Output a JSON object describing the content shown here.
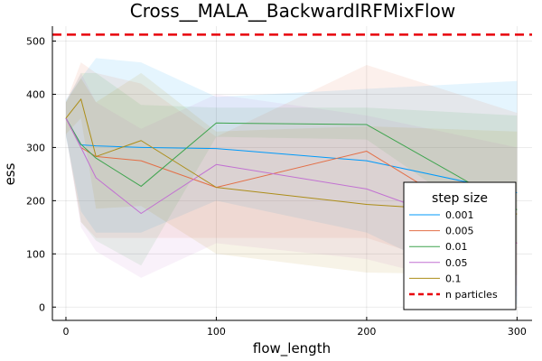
{
  "chart_data": {
    "type": "line",
    "title": "Cross__MALA__BackwardIRFMixFlow",
    "xlabel": "flow_length",
    "ylabel": "ess",
    "xlim": [
      -9,
      310
    ],
    "ylim": [
      -25,
      528
    ],
    "xticks": [
      0,
      100,
      200,
      300
    ],
    "yticks": [
      0,
      100,
      200,
      300,
      400,
      500
    ],
    "grid": true,
    "legend": {
      "title": "step size",
      "placement": "bottom-right"
    },
    "series": [
      {
        "name": "0.001",
        "color": "#009AFA",
        "x": [
          0,
          10,
          20,
          50,
          100,
          200,
          300
        ],
        "y": [
          355,
          305,
          303,
          300,
          298,
          275,
          215
        ],
        "upper": [
          390,
          430,
          468,
          460,
          395,
          410,
          425
        ],
        "lower": [
          320,
          180,
          140,
          140,
          200,
          140,
          5
        ]
      },
      {
        "name": "0.005",
        "color": "#E36F47",
        "x": [
          0,
          10,
          20,
          50,
          100,
          200,
          300
        ],
        "y": [
          355,
          300,
          283,
          275,
          225,
          293,
          120
        ],
        "upper": [
          385,
          460,
          440,
          420,
          320,
          455,
          365
        ],
        "lower": [
          325,
          160,
          130,
          130,
          130,
          130,
          40
        ]
      },
      {
        "name": "0.01",
        "color": "#3EA44E",
        "x": [
          0,
          10,
          20,
          50,
          100,
          200,
          300
        ],
        "y": [
          355,
          306,
          280,
          227,
          346,
          343,
          183
        ],
        "upper": [
          385,
          440,
          440,
          380,
          375,
          375,
          360
        ],
        "lower": [
          325,
          160,
          125,
          78,
          320,
          315,
          120
        ]
      },
      {
        "name": "0.05",
        "color": "#C271D2",
        "x": [
          0,
          10,
          20,
          50,
          100,
          200,
          300
        ],
        "y": [
          355,
          300,
          243,
          176,
          268,
          222,
          120
        ],
        "upper": [
          385,
          440,
          385,
          335,
          400,
          360,
          300
        ],
        "lower": [
          325,
          150,
          105,
          55,
          120,
          90,
          20
        ]
      },
      {
        "name": "0.1",
        "color": "#AC8D18",
        "x": [
          0,
          10,
          20,
          50,
          100,
          200,
          300
        ],
        "y": [
          355,
          391,
          283,
          313,
          225,
          193,
          175
        ],
        "upper": [
          385,
          430,
          385,
          440,
          330,
          340,
          330
        ],
        "lower": [
          325,
          355,
          185,
          190,
          100,
          65,
          60
        ]
      }
    ],
    "hline": {
      "name": "n particles",
      "y": 512,
      "color": "#E8000B"
    }
  }
}
